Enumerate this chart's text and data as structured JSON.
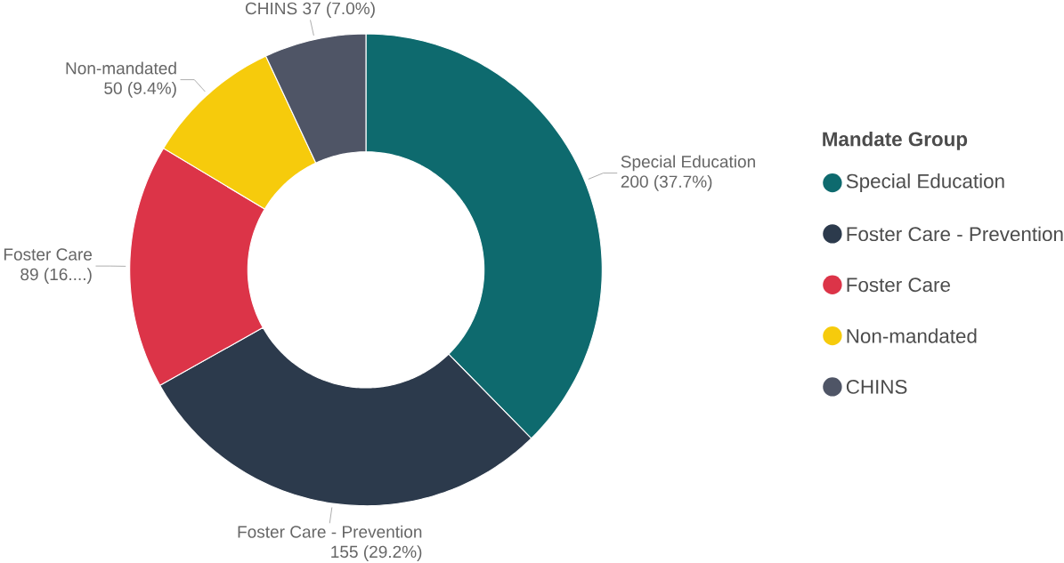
{
  "chart_data": {
    "type": "donut",
    "legend_title": "Mandate Group",
    "legend": "right",
    "categories": [
      "Special Education",
      "Foster Care - Prevention",
      "Foster Care",
      "Non-mandated",
      "CHINS"
    ],
    "values": [
      200,
      155,
      89,
      50,
      37
    ],
    "value_labels": [
      "200 (37.7%)",
      "155 (29.2%)",
      "89 (16....)",
      "50 (9.4%)",
      "37 (7.0%)"
    ],
    "colors": [
      "#0e6a6e",
      "#2c3a4c",
      "#dc3448",
      "#f6cb0c",
      "#4f5566"
    ]
  }
}
